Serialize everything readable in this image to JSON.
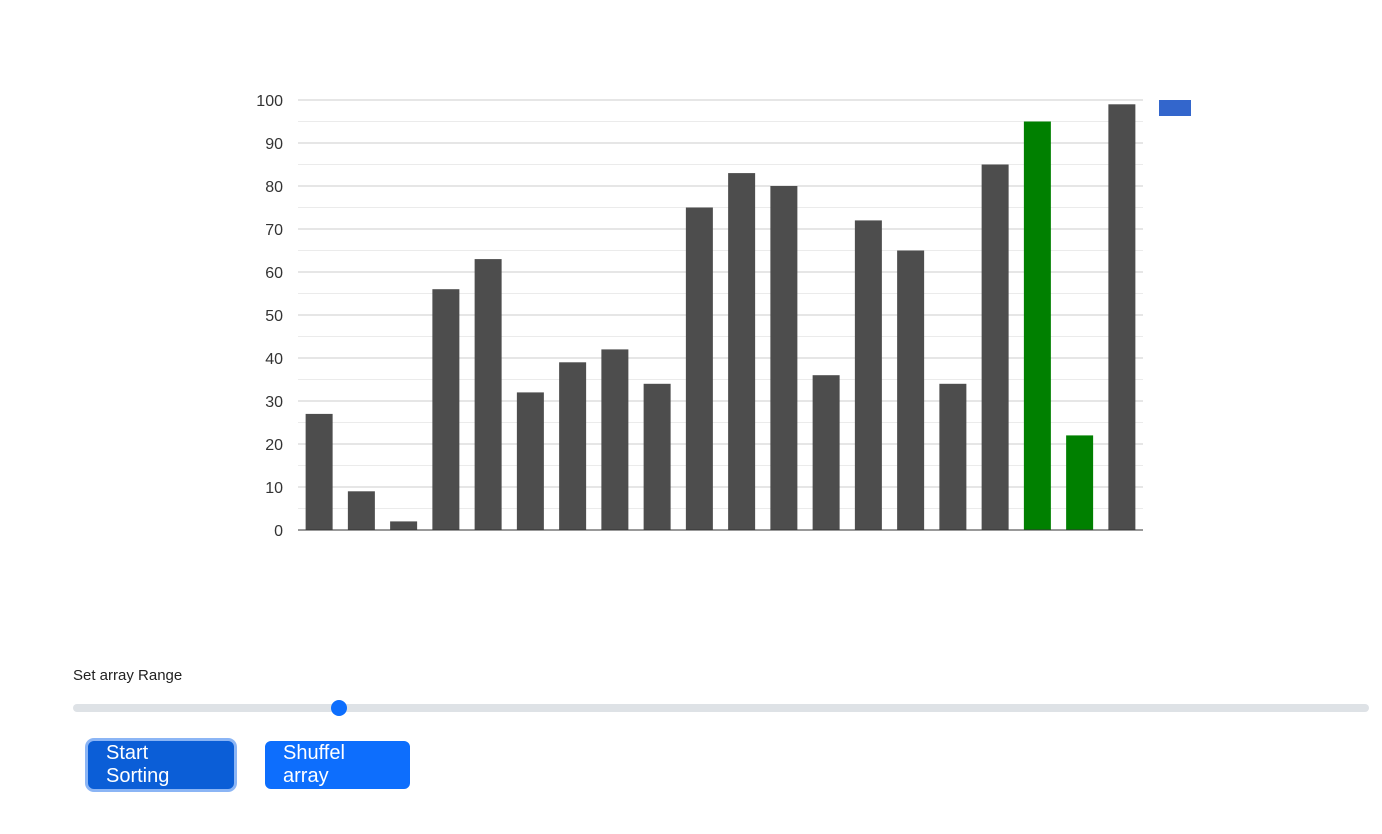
{
  "chart_data": {
    "type": "bar",
    "title": "",
    "xlabel": "",
    "ylabel": "",
    "ylim": [
      0,
      100
    ],
    "yticks": [
      "0",
      "10",
      "20",
      "30",
      "40",
      "50",
      "60",
      "70",
      "80",
      "90",
      "100"
    ],
    "grid": true,
    "legend": "top-right",
    "values": [
      27,
      9,
      2,
      56,
      63,
      32,
      39,
      42,
      34,
      75,
      83,
      80,
      36,
      72,
      65,
      34,
      85,
      95,
      22,
      99
    ],
    "highlighted_indices": [
      17,
      18
    ],
    "colors": {
      "bar": "#4d4d4d",
      "highlight": "#008000",
      "legend_swatch": "#3366cc",
      "gridline": "#cccccc",
      "minor_gridline": "#ebebeb",
      "axis": "#333333"
    }
  },
  "controls": {
    "range_label": "Set array Range",
    "range_value_fraction": 0.205,
    "thumb_color": "#0d6efd",
    "start_button": "Start Sorting",
    "shuffle_button": "Shuffel array",
    "button_color": "#0d6efd",
    "button_active_color": "#0b5ed7"
  }
}
